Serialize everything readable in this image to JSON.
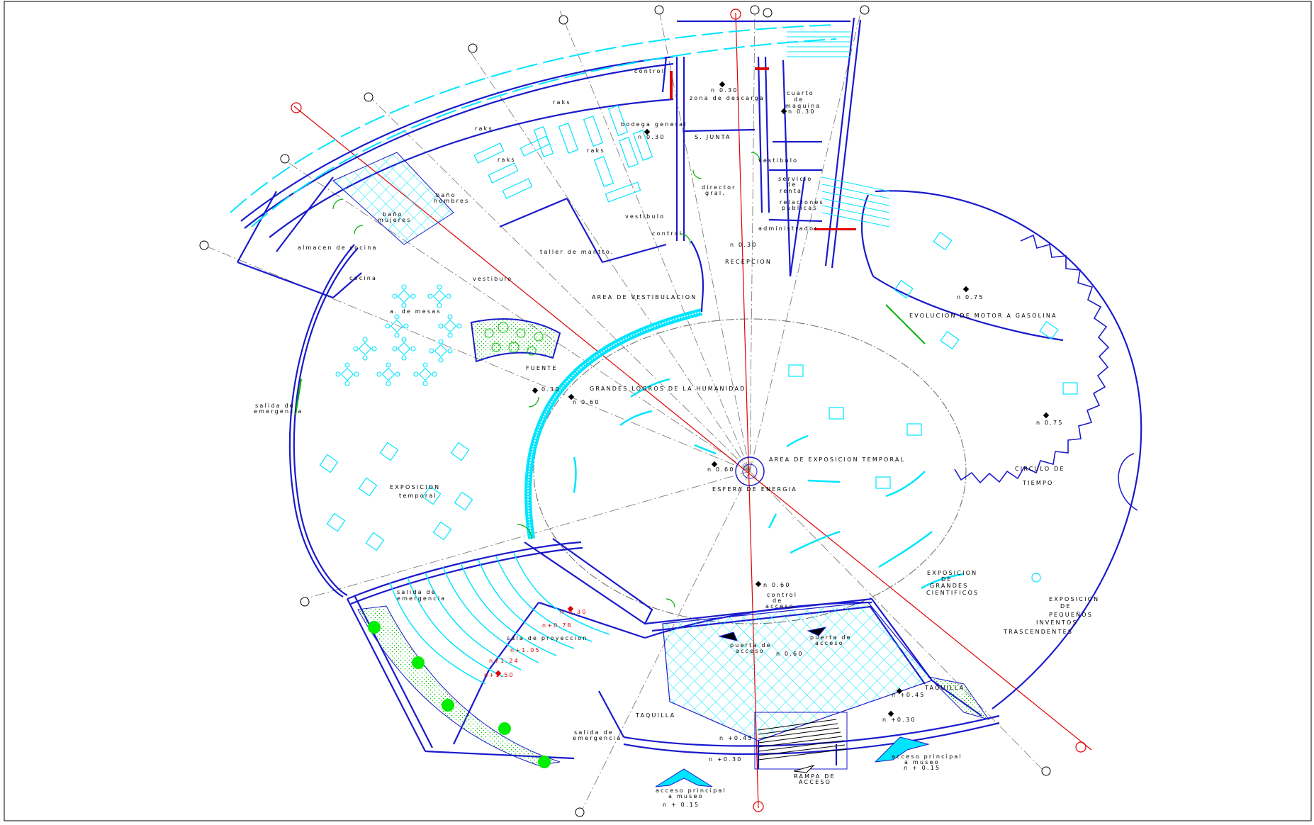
{
  "plan": {
    "labels": [
      {
        "id": "control-top",
        "text": "control"
      },
      {
        "id": "raks-1",
        "text": "raks"
      },
      {
        "id": "raks-2",
        "text": "raks"
      },
      {
        "id": "raks-3",
        "text": "raks"
      },
      {
        "id": "raks-4",
        "text": "raks"
      },
      {
        "id": "bodega",
        "text": "bodega general"
      },
      {
        "id": "n-bodega",
        "text": "n 0.30"
      },
      {
        "id": "n-descarga",
        "text": "n 0.30"
      },
      {
        "id": "descarga",
        "text": "zona de descarga"
      },
      {
        "id": "cuarto",
        "text": "cuarto"
      },
      {
        "id": "de-maq",
        "text": "de"
      },
      {
        "id": "maquina",
        "text": "maquina"
      },
      {
        "id": "n-maquina",
        "text": "n 0.30"
      },
      {
        "id": "sjunta",
        "text": "S. JUNTA"
      },
      {
        "id": "vestibulo-adm",
        "text": "vestibulo"
      },
      {
        "id": "servicio",
        "text": "servicio"
      },
      {
        "id": "de-renta",
        "text": "de"
      },
      {
        "id": "renta",
        "text": "renta"
      },
      {
        "id": "director",
        "text": "director"
      },
      {
        "id": "gral",
        "text": "gral."
      },
      {
        "id": "relaciones",
        "text": "relaciones"
      },
      {
        "id": "publicas",
        "text": "publicas"
      },
      {
        "id": "administrador",
        "text": "administrador"
      },
      {
        "id": "bano-hombres-1",
        "text": "baño"
      },
      {
        "id": "bano-hombres-2",
        "text": "hombres"
      },
      {
        "id": "bano-mujeres-1",
        "text": "baño"
      },
      {
        "id": "bano-mujeres-2",
        "text": "mujeres"
      },
      {
        "id": "vestibulo-mid",
        "text": "vestibulo"
      },
      {
        "id": "control-mid",
        "text": "control"
      },
      {
        "id": "n-recepcion",
        "text": "n 0.30"
      },
      {
        "id": "recepcion",
        "text": "RECEPCION"
      },
      {
        "id": "almacen",
        "text": "almacen de cocina"
      },
      {
        "id": "cocina",
        "text": "cocina"
      },
      {
        "id": "taller",
        "text": "taller de mantto."
      },
      {
        "id": "vestibulo-left",
        "text": "vestibulo"
      },
      {
        "id": "area-vest",
        "text": "AREA DE VESTIBULACION"
      },
      {
        "id": "mesas",
        "text": "a. de mesas"
      },
      {
        "id": "fuente",
        "text": "FUENTE"
      },
      {
        "id": "evolucion",
        "text": "EVOLUCION DE MOTOR A GASOLINA"
      },
      {
        "id": "n-evol",
        "text": "n 0.75"
      },
      {
        "id": "n-circ",
        "text": "n 0.75"
      },
      {
        "id": "grandes-logros",
        "text": "GRANDES LOGROS DE LA HUMANIDAD"
      },
      {
        "id": "n-logros-a",
        "text": "n 0.30"
      },
      {
        "id": "n-logros-b",
        "text": "n 0.60"
      },
      {
        "id": "salida-em-left-1",
        "text": "salida de"
      },
      {
        "id": "salida-em-left-2",
        "text": "emergencia"
      },
      {
        "id": "area-temp",
        "text": "AREA DE EXPOSICION TEMPORAL"
      },
      {
        "id": "n-centro",
        "text": "n 0.60"
      },
      {
        "id": "esfera",
        "text": "ESFERA DE ENERGIA"
      },
      {
        "id": "expo-temp-1",
        "text": "EXPOSICION"
      },
      {
        "id": "expo-temp-2",
        "text": "temporal"
      },
      {
        "id": "circulo-1",
        "text": "CIRCULO DE"
      },
      {
        "id": "circulo-2",
        "text": "TIEMPO"
      },
      {
        "id": "n-control",
        "text": "n 0.60"
      },
      {
        "id": "control-acc-1",
        "text": "control"
      },
      {
        "id": "control-acc-2",
        "text": "de"
      },
      {
        "id": "control-acc-3",
        "text": "acceso"
      },
      {
        "id": "expo-gc-1",
        "text": "EXPOSICION"
      },
      {
        "id": "expo-gc-2",
        "text": "DE"
      },
      {
        "id": "expo-gc-3",
        "text": "GRANDES"
      },
      {
        "id": "expo-gc-4",
        "text": "CIENTIFICOS"
      },
      {
        "id": "expo-pi-1",
        "text": "EXPOSICION"
      },
      {
        "id": "expo-pi-2",
        "text": "DE"
      },
      {
        "id": "expo-pi-3",
        "text": "PEQUEÑOS"
      },
      {
        "id": "expo-pi-4",
        "text": "INVENTOS"
      },
      {
        "id": "expo-pi-5",
        "text": "TRASCENDENTES"
      },
      {
        "id": "salida-em-mid-1",
        "text": "salida de"
      },
      {
        "id": "salida-em-mid-2",
        "text": "emergencia"
      },
      {
        "id": "n-proy-1",
        "text": "n 0.30"
      },
      {
        "id": "n-proy-2",
        "text": "n+0.78"
      },
      {
        "id": "sala-proy",
        "text": "sala de proyeccion"
      },
      {
        "id": "n-proy-3",
        "text": "n+1.05"
      },
      {
        "id": "n-proy-4",
        "text": "n+1.24"
      },
      {
        "id": "n-proy-5",
        "text": "n+1.50"
      },
      {
        "id": "puerta-acc-1a",
        "text": "puerta de"
      },
      {
        "id": "puerta-acc-1b",
        "text": "acceso"
      },
      {
        "id": "puerta-acc-2a",
        "text": "puerta de"
      },
      {
        "id": "puerta-acc-2b",
        "text": "acceso"
      },
      {
        "id": "n-plaza",
        "text": "n 0.60"
      },
      {
        "id": "n-045-r",
        "text": "n +0.45"
      },
      {
        "id": "taquilla-r",
        "text": "TAQUILLA"
      },
      {
        "id": "n-030-r",
        "text": "n +0.30"
      },
      {
        "id": "taquilla-l",
        "text": "TAQUILLA"
      },
      {
        "id": "salida-em-bot-1",
        "text": "salida de"
      },
      {
        "id": "salida-em-bot-2",
        "text": "emergencia"
      },
      {
        "id": "n-045-b",
        "text": "n +0.45"
      },
      {
        "id": "n-030-b",
        "text": "n +0.30"
      },
      {
        "id": "acceso-r-1",
        "text": "acceso principal"
      },
      {
        "id": "acceso-r-2",
        "text": "a museo"
      },
      {
        "id": "n-015-r",
        "text": "n + 0.15"
      },
      {
        "id": "rampa-1",
        "text": "RAMPA DE"
      },
      {
        "id": "rampa-2",
        "text": "ACCESO"
      },
      {
        "id": "acceso-l-1",
        "text": "acceso principal"
      },
      {
        "id": "acceso-l-2",
        "text": "a museo"
      },
      {
        "id": "n-015-l",
        "text": "n + 0.15"
      }
    ]
  },
  "colors": {
    "wall": "#1a1acc",
    "furniture": "#00e5ff",
    "axis": "#e00000",
    "door": "#00b000",
    "grid": "#606060",
    "planting": "#00c000"
  }
}
